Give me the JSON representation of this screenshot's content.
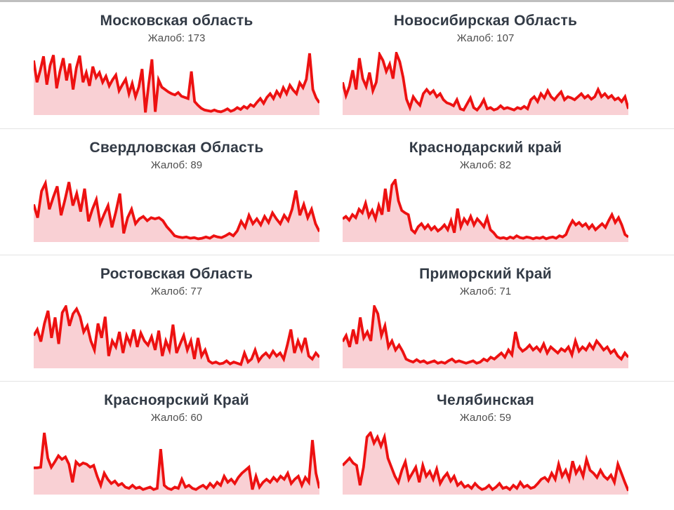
{
  "colors": {
    "line": "#ed1111",
    "fill": "#f9d0d4",
    "title_text": "#323a45",
    "subtitle_text": "#4e4e4e",
    "divider": "#e3e3e3",
    "top_border": "#bfbfbf"
  },
  "chart_data": [
    {
      "type": "area",
      "title": "Московская область",
      "complaints_label": "Жалоб: 173",
      "complaints": 173,
      "xlabel": "",
      "ylabel": "",
      "axes_hidden": true,
      "values": [
        88,
        52,
        72,
        95,
        48,
        80,
        97,
        42,
        70,
        92,
        55,
        83,
        40,
        76,
        96,
        52,
        68,
        46,
        78,
        60,
        68,
        52,
        62,
        46,
        56,
        64,
        38,
        48,
        57,
        33,
        50,
        28,
        44,
        74,
        2,
        48,
        90,
        3,
        56,
        44,
        40,
        36,
        33,
        31,
        35,
        29,
        27,
        25,
        70,
        20,
        14,
        9,
        6,
        5,
        4,
        6,
        4,
        3,
        5,
        8,
        4,
        6,
        10,
        7,
        12,
        9,
        15,
        12,
        19,
        25,
        17,
        27,
        33,
        25,
        37,
        29,
        43,
        33,
        47,
        39,
        33,
        51,
        43,
        57,
        100,
        40,
        26,
        18
      ]
    },
    {
      "type": "area",
      "title": "Новосибирская Область",
      "complaints_label": "Жалоб: 107",
      "complaints": 107,
      "xlabel": "",
      "ylabel": "",
      "axes_hidden": true,
      "values": [
        52,
        30,
        45,
        72,
        40,
        92,
        58,
        45,
        68,
        38,
        52,
        98,
        88,
        70,
        82,
        58,
        100,
        86,
        60,
        24,
        10,
        28,
        20,
        14,
        33,
        40,
        33,
        38,
        28,
        33,
        23,
        18,
        16,
        13,
        23,
        8,
        6,
        16,
        26,
        10,
        6,
        13,
        23,
        8,
        10,
        6,
        8,
        13,
        8,
        10,
        8,
        6,
        10,
        8,
        12,
        8,
        23,
        28,
        20,
        33,
        26,
        38,
        28,
        23,
        30,
        36,
        23,
        28,
        26,
        23,
        28,
        33,
        26,
        30,
        24,
        28,
        40,
        28,
        33,
        26,
        30,
        23,
        26,
        20,
        28,
        8
      ]
    },
    {
      "type": "area",
      "title": "Свердловская Область",
      "complaints_label": "Жалоб: 89",
      "complaints": 89,
      "xlabel": "",
      "ylabel": "",
      "axes_hidden": true,
      "values": [
        60,
        38,
        82,
        95,
        52,
        72,
        90,
        42,
        68,
        97,
        58,
        78,
        48,
        86,
        32,
        52,
        68,
        28,
        44,
        58,
        22,
        48,
        78,
        12,
        38,
        52,
        28,
        36,
        40,
        33,
        38,
        36,
        38,
        33,
        23,
        16,
        8,
        6,
        5,
        6,
        4,
        5,
        3,
        4,
        6,
        4,
        8,
        6,
        5,
        8,
        12,
        8,
        16,
        32,
        22,
        42,
        28,
        36,
        26,
        40,
        30,
        46,
        36,
        28,
        42,
        33,
        52,
        83,
        42,
        60,
        38,
        52,
        28,
        15
      ]
    },
    {
      "type": "area",
      "title": "Краснодарский край",
      "complaints_label": "Жалоб: 82",
      "complaints": 82,
      "xlabel": "",
      "ylabel": "",
      "axes_hidden": true,
      "values": [
        36,
        40,
        34,
        43,
        38,
        52,
        46,
        62,
        40,
        50,
        36,
        58,
        43,
        86,
        48,
        92,
        100,
        66,
        50,
        46,
        43,
        18,
        13,
        23,
        28,
        20,
        26,
        18,
        23,
        16,
        20,
        26,
        18,
        33,
        13,
        53,
        23,
        36,
        28,
        40,
        26,
        36,
        30,
        23,
        38,
        18,
        13,
        6,
        4,
        5,
        3,
        6,
        4,
        8,
        5,
        4,
        6,
        5,
        3,
        5,
        4,
        6,
        3,
        5,
        6,
        4,
        8,
        6,
        10,
        23,
        33,
        26,
        30,
        24,
        28,
        20,
        26,
        18,
        23,
        28,
        22,
        33,
        43,
        30,
        38,
        26,
        10,
        6
      ]
    },
    {
      "type": "area",
      "title": "Ростовская Область",
      "complaints_label": "Жалоб: 77",
      "complaints": 77,
      "xlabel": "",
      "ylabel": "",
      "axes_hidden": true,
      "values": [
        52,
        62,
        42,
        72,
        93,
        48,
        82,
        38,
        90,
        100,
        68,
        88,
        96,
        83,
        58,
        68,
        43,
        28,
        72,
        48,
        83,
        18,
        43,
        33,
        58,
        23,
        52,
        38,
        62,
        33,
        56,
        43,
        36,
        50,
        28,
        60,
        18,
        43,
        28,
        70,
        23,
        38,
        52,
        28,
        43,
        13,
        48,
        18,
        28,
        10,
        6,
        8,
        5,
        6,
        10,
        5,
        8,
        6,
        4,
        23,
        8,
        13,
        28,
        10,
        18,
        23,
        16,
        26,
        18,
        23,
        13,
        36,
        62,
        23,
        43,
        28,
        48,
        18,
        13,
        23,
        16
      ]
    },
    {
      "type": "area",
      "title": "Приморский Край",
      "complaints_label": "Жалоб: 71",
      "complaints": 71,
      "xlabel": "",
      "ylabel": "",
      "axes_hidden": true,
      "values": [
        42,
        52,
        33,
        62,
        38,
        82,
        48,
        58,
        43,
        100,
        88,
        52,
        68,
        33,
        43,
        28,
        36,
        26,
        13,
        10,
        8,
        12,
        8,
        10,
        6,
        8,
        10,
        6,
        8,
        6,
        10,
        13,
        8,
        10,
        8,
        6,
        8,
        10,
        6,
        8,
        13,
        10,
        16,
        13,
        18,
        23,
        16,
        28,
        20,
        58,
        33,
        26,
        30,
        36,
        28,
        33,
        26,
        38,
        23,
        33,
        28,
        23,
        30,
        26,
        33,
        20,
        43,
        26,
        33,
        28,
        38,
        30,
        43,
        36,
        28,
        33,
        23,
        28,
        18,
        13,
        23,
        16
      ]
    },
    {
      "type": "area",
      "title": "Красноярский Край",
      "complaints_label": "Жалоб: 60",
      "complaints": 60,
      "xlabel": "",
      "ylabel": "",
      "axes_hidden": true,
      "values": [
        42,
        42,
        43,
        100,
        58,
        43,
        52,
        62,
        56,
        60,
        48,
        18,
        52,
        46,
        50,
        48,
        43,
        46,
        28,
        13,
        33,
        23,
        16,
        20,
        13,
        16,
        10,
        8,
        13,
        8,
        10,
        6,
        8,
        10,
        6,
        8,
        73,
        13,
        8,
        6,
        10,
        8,
        23,
        10,
        13,
        8,
        6,
        10,
        13,
        8,
        16,
        10,
        18,
        13,
        28,
        18,
        23,
        16,
        26,
        33,
        38,
        43,
        6,
        28,
        10,
        18,
        23,
        18,
        26,
        20,
        28,
        23,
        33,
        16,
        23,
        28,
        13,
        26,
        18,
        88,
        33,
        8
      ]
    },
    {
      "type": "area",
      "title": "Челябинская",
      "complaints_label": "Жалоб: 59",
      "complaints": 59,
      "xlabel": "",
      "ylabel": "",
      "axes_hidden": true,
      "values": [
        46,
        52,
        58,
        50,
        46,
        13,
        43,
        93,
        100,
        83,
        93,
        78,
        93,
        58,
        43,
        28,
        18,
        38,
        52,
        23,
        33,
        43,
        18,
        46,
        28,
        36,
        23,
        40,
        16,
        26,
        33,
        20,
        28,
        13,
        18,
        10,
        13,
        8,
        16,
        10,
        6,
        8,
        13,
        6,
        10,
        16,
        8,
        10,
        6,
        13,
        8,
        18,
        10,
        13,
        8,
        10,
        16,
        23,
        26,
        20,
        33,
        23,
        48,
        28,
        38,
        23,
        53,
        33,
        43,
        28,
        56,
        38,
        33,
        26,
        38,
        28,
        23,
        30,
        18,
        48,
        33,
        18,
        4
      ]
    }
  ]
}
